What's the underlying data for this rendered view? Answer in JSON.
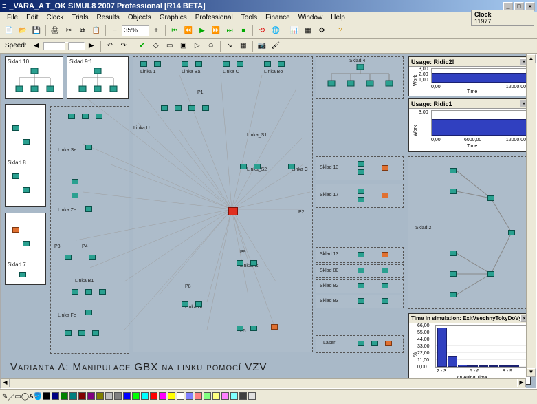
{
  "window": {
    "title": "_VARA_A     T_OK   SIMUL8 2007 Professional [R14 BETA]",
    "clock_label": "Clock",
    "clock_value": "11977"
  },
  "menu": {
    "items": [
      "File",
      "Edit",
      "Clock",
      "Trials",
      "Results",
      "Objects",
      "Graphics",
      "Professional",
      "Tools",
      "Finance",
      "Window",
      "Help"
    ]
  },
  "toolbar1": {
    "zoom": "35%"
  },
  "toolbar2": {
    "speed_label": "Speed:"
  },
  "labels": {
    "sklad10": "Sklad 10",
    "sklad91": "Sklad 9:1",
    "sklad8": "Sklad 8",
    "sklad7": "Sklad 7",
    "sklad4": "Sklad 4",
    "sklad13": "Sklad 13",
    "sklad17": "Sklad 17",
    "sklad2": "Sklad 2",
    "sklad13b": "Sklad 13",
    "sklad80": "Sklad 80",
    "sklad82": "Sklad 82",
    "sklad83": "Sklad 83",
    "linka1": "Linka 1",
    "linka_ba": "Linka Ba",
    "linka_c": "Linka C",
    "linka_bo": "Linka Bo",
    "linka_u": "Linka U",
    "linka_se": "Linka Se",
    "linka_ze": "Linka Ze",
    "linka_s1": "Linka_S1",
    "linka_s2": "Linka_S2",
    "linka_c2": "Linka C",
    "linka_fe": "Linka Fe",
    "linka_b1": "Linka B1",
    "linka_bl": "Linka Bl",
    "linka_as": "Linka As",
    "p1": "P1",
    "p2": "P2",
    "p3": "P3",
    "p4": "P4",
    "p5": "P5",
    "p8": "P8",
    "p9": "P9",
    "laser": "Laser"
  },
  "charts": {
    "ridic2": {
      "title": "Usage: Ridic2!",
      "ymax": "3,00",
      "ymid": "2,00",
      "ymin": "1,00",
      "xmin": "0,00",
      "xmax": "12000,00",
      "xlabel": "Time",
      "ylabel": "Work",
      "bar_color": "#3040c0"
    },
    "ridic1": {
      "title": "Usage: Ridic1",
      "ymax": "3,00",
      "xmin": "0,00",
      "xmid": "6000,00",
      "xmax": "12000,00",
      "xlabel": "Time",
      "ylabel": "Work",
      "bar_color": "#3040c0"
    },
    "queuing": {
      "title": "Time in simulation: ExitVsechnyTokyDoVyroby",
      "ymax": "66,00",
      "y2": "55,00",
      "y3": "44,00",
      "y4": "33,00",
      "y5": "22,00",
      "y6": "11,00",
      "ymin": "0,00",
      "xlabel": "Queuing Time",
      "ylabel": "%",
      "cats": [
        "2 - 3",
        "",
        "5 - 6",
        "",
        "8 - 9"
      ],
      "values": [
        63,
        18,
        3,
        2,
        1,
        1,
        1,
        0
      ],
      "bar_color": "#3040c0"
    }
  },
  "footer": "Varianta A: Manipulace GBX na linku pomocí VZV",
  "colors": {
    "accent": "#2aa090",
    "palette": [
      "#000000",
      "#000080",
      "#008000",
      "#008080",
      "#800000",
      "#800080",
      "#808000",
      "#c0c0c0",
      "#808080",
      "#0000ff",
      "#00ff00",
      "#00ffff",
      "#ff0000",
      "#ff00ff",
      "#ffff00",
      "#ffffff",
      "#8080ff",
      "#ff8080",
      "#80ff80",
      "#ffff80",
      "#ff80ff",
      "#80ffff",
      "#404040",
      "#e0e0e0"
    ]
  }
}
